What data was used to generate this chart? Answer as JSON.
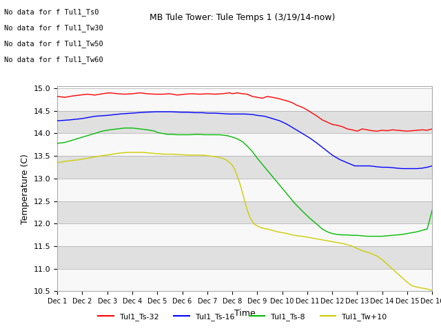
{
  "title": "MB Tule Tower: Tule Temps 1 (3/19/14-now)",
  "xlabel": "Time",
  "ylabel": "Temperature (C)",
  "ylim": [
    10.5,
    15.05
  ],
  "xlim": [
    0,
    15
  ],
  "xtick_labels": [
    "Dec 1",
    "Dec 2",
    "Dec 3",
    "Dec 4",
    "Dec 5",
    "Dec 6",
    "Dec 7",
    "Dec 8",
    "Dec 9",
    "Dec 10",
    "Dec 11",
    "Dec 12",
    "Dec 13",
    "Dec 14",
    "Dec 15",
    "Dec 16"
  ],
  "ytick_values": [
    10.5,
    11.0,
    11.5,
    12.0,
    12.5,
    13.0,
    13.5,
    14.0,
    14.5,
    15.0
  ],
  "legend_entries": [
    "Tul1_Ts-32",
    "Tul1_Ts-16",
    "Tul1_Ts-8",
    "Tul1_Tw+10"
  ],
  "no_data_texts": [
    "No data for f Tul1_Ts0",
    "No data for f Tul1_Tw30",
    "No data for f Tul1_Tw50",
    "No data for f Tul1_Tw60"
  ],
  "band_color_light": "#e0e0e0",
  "band_color_white": "#f8f8f8",
  "red_x": [
    0,
    0.3,
    0.6,
    0.9,
    1.2,
    1.5,
    1.8,
    2.1,
    2.4,
    2.7,
    3.0,
    3.3,
    3.6,
    3.9,
    4.2,
    4.5,
    4.8,
    5.1,
    5.4,
    5.7,
    6.0,
    6.3,
    6.6,
    6.9,
    7.0,
    7.2,
    7.4,
    7.6,
    7.8,
    8.0,
    8.2,
    8.4,
    8.6,
    8.8,
    9.0,
    9.2,
    9.4,
    9.6,
    9.8,
    10.0,
    10.2,
    10.4,
    10.6,
    10.8,
    11.0,
    11.2,
    11.4,
    11.6,
    11.8,
    12.0,
    12.2,
    12.4,
    12.6,
    12.8,
    13.0,
    13.2,
    13.4,
    13.6,
    13.8,
    14.0,
    14.2,
    14.4,
    14.6,
    14.8,
    15.0
  ],
  "red_y": [
    14.82,
    14.8,
    14.83,
    14.85,
    14.87,
    14.85,
    14.88,
    14.9,
    14.88,
    14.87,
    14.88,
    14.9,
    14.88,
    14.87,
    14.87,
    14.88,
    14.85,
    14.87,
    14.88,
    14.87,
    14.88,
    14.87,
    14.88,
    14.9,
    14.88,
    14.9,
    14.88,
    14.87,
    14.82,
    14.8,
    14.78,
    14.82,
    14.8,
    14.78,
    14.75,
    14.72,
    14.68,
    14.62,
    14.58,
    14.52,
    14.45,
    14.38,
    14.3,
    14.25,
    14.2,
    14.18,
    14.15,
    14.1,
    14.08,
    14.05,
    14.1,
    14.08,
    14.06,
    14.05,
    14.07,
    14.06,
    14.08,
    14.07,
    14.06,
    14.05,
    14.06,
    14.07,
    14.08,
    14.07,
    14.1
  ],
  "blue_x": [
    0,
    0.5,
    1,
    1.5,
    2,
    2.5,
    3,
    3.5,
    4,
    4.5,
    5,
    5.2,
    5.5,
    5.8,
    6.0,
    6.3,
    6.6,
    6.9,
    7.2,
    7.5,
    7.8,
    8.0,
    8.3,
    8.6,
    8.9,
    9.2,
    9.5,
    9.8,
    10.1,
    10.4,
    10.7,
    11.0,
    11.3,
    11.6,
    11.9,
    12.2,
    12.5,
    12.8,
    13.0,
    13.2,
    13.4,
    13.6,
    13.8,
    14.0,
    14.2,
    14.4,
    14.6,
    14.8,
    15.0
  ],
  "blue_y": [
    14.28,
    14.3,
    14.33,
    14.38,
    14.4,
    14.43,
    14.45,
    14.47,
    14.48,
    14.48,
    14.47,
    14.47,
    14.46,
    14.46,
    14.45,
    14.45,
    14.44,
    14.43,
    14.43,
    14.43,
    14.42,
    14.4,
    14.38,
    14.33,
    14.28,
    14.2,
    14.1,
    14.0,
    13.9,
    13.78,
    13.65,
    13.52,
    13.42,
    13.35,
    13.28,
    13.28,
    13.28,
    13.26,
    13.25,
    13.25,
    13.24,
    13.23,
    13.22,
    13.22,
    13.22,
    13.22,
    13.23,
    13.25,
    13.28
  ],
  "green_x": [
    0,
    0.3,
    0.6,
    0.9,
    1.2,
    1.5,
    1.8,
    2.1,
    2.4,
    2.7,
    3.0,
    3.3,
    3.6,
    3.9,
    4.0,
    4.2,
    4.4,
    4.6,
    4.8,
    5.0,
    5.3,
    5.6,
    5.9,
    6.2,
    6.5,
    6.8,
    7.0,
    7.2,
    7.4,
    7.6,
    7.8,
    8.0,
    8.3,
    8.6,
    8.9,
    9.2,
    9.5,
    9.8,
    10.1,
    10.4,
    10.6,
    10.8,
    11.0,
    11.2,
    11.4,
    11.6,
    11.8,
    12.0,
    12.2,
    12.4,
    12.6,
    12.8,
    13.0,
    13.2,
    13.4,
    13.6,
    13.8,
    14.0,
    14.2,
    14.4,
    14.6,
    14.8,
    15.0
  ],
  "green_y": [
    13.78,
    13.8,
    13.85,
    13.9,
    13.95,
    14.0,
    14.05,
    14.08,
    14.1,
    14.12,
    14.12,
    14.1,
    14.08,
    14.05,
    14.02,
    14.0,
    13.98,
    13.98,
    13.97,
    13.97,
    13.97,
    13.98,
    13.97,
    13.97,
    13.97,
    13.95,
    13.92,
    13.88,
    13.82,
    13.72,
    13.6,
    13.45,
    13.25,
    13.05,
    12.85,
    12.65,
    12.45,
    12.28,
    12.12,
    11.98,
    11.88,
    11.82,
    11.78,
    11.76,
    11.75,
    11.75,
    11.74,
    11.74,
    11.73,
    11.72,
    11.72,
    11.72,
    11.72,
    11.73,
    11.74,
    11.75,
    11.76,
    11.78,
    11.8,
    11.82,
    11.85,
    11.88,
    12.3
  ],
  "yellow_x": [
    0,
    0.3,
    0.6,
    0.9,
    1.2,
    1.5,
    1.7,
    2.0,
    2.3,
    2.6,
    2.9,
    3.2,
    3.4,
    3.6,
    3.8,
    4.0,
    4.3,
    4.6,
    4.9,
    5.2,
    5.5,
    5.8,
    6.1,
    6.4,
    6.6,
    6.8,
    7.0,
    7.1,
    7.2,
    7.3,
    7.4,
    7.5,
    7.6,
    7.7,
    7.8,
    7.9,
    8.0,
    8.2,
    8.4,
    8.6,
    8.8,
    9.0,
    9.2,
    9.4,
    9.6,
    9.8,
    10.0,
    10.2,
    10.5,
    10.8,
    11.0,
    11.2,
    11.5,
    11.8,
    12.0,
    12.2,
    12.5,
    12.8,
    13.0,
    13.2,
    13.5,
    13.8,
    14.0,
    14.2,
    14.5,
    14.8,
    15.0
  ],
  "yellow_y": [
    13.35,
    13.38,
    13.4,
    13.42,
    13.45,
    13.48,
    13.5,
    13.52,
    13.55,
    13.57,
    13.58,
    13.58,
    13.58,
    13.57,
    13.56,
    13.55,
    13.54,
    13.54,
    13.53,
    13.52,
    13.52,
    13.52,
    13.5,
    13.48,
    13.45,
    13.4,
    13.3,
    13.2,
    13.05,
    12.9,
    12.7,
    12.5,
    12.3,
    12.15,
    12.05,
    11.98,
    11.95,
    11.9,
    11.88,
    11.85,
    11.82,
    11.8,
    11.78,
    11.75,
    11.73,
    11.72,
    11.7,
    11.68,
    11.65,
    11.62,
    11.6,
    11.58,
    11.55,
    11.5,
    11.45,
    11.4,
    11.35,
    11.28,
    11.2,
    11.1,
    10.95,
    10.8,
    10.7,
    10.62,
    10.58,
    10.55,
    10.52
  ]
}
